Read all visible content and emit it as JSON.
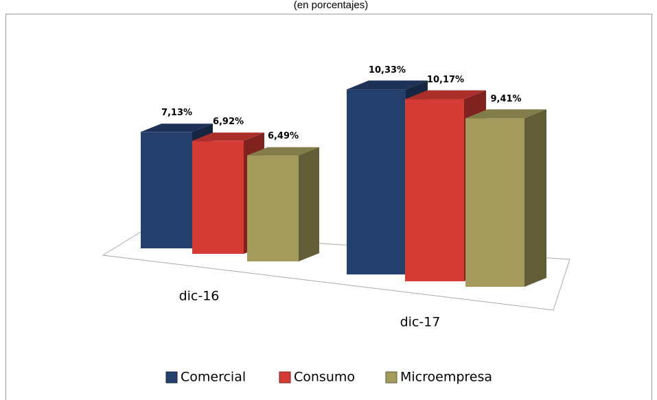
{
  "chart_data": {
    "type": "bar3d",
    "subtitle": "(en porcentajes)",
    "categories": [
      "dic-16",
      "dic-17"
    ],
    "series": [
      {
        "name": "Comercial",
        "color": "#243f6b",
        "values": [
          7.13,
          10.33
        ],
        "value_labels": [
          "7,13%",
          "10,33%"
        ]
      },
      {
        "name": "Consumo",
        "color": "#d53a35",
        "values": [
          6.92,
          10.17
        ],
        "value_labels": [
          "6,92%",
          "10,17%"
        ]
      },
      {
        "name": "Microempresa",
        "color": "#a39a5c",
        "values": [
          6.49,
          9.41
        ],
        "value_labels": [
          "6,49%",
          "9,41%"
        ]
      }
    ]
  }
}
